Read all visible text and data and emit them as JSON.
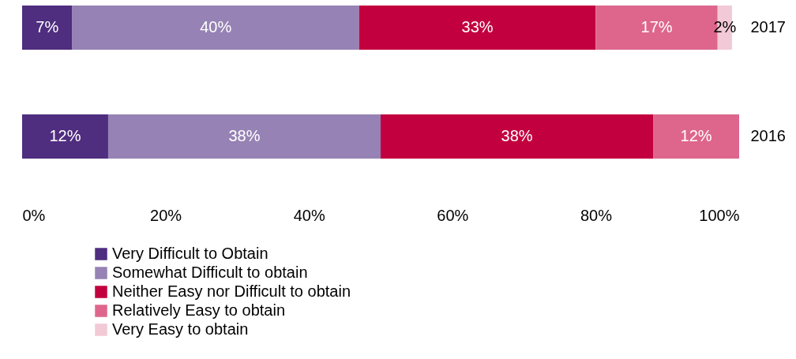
{
  "chart_data": {
    "type": "bar",
    "orientation": "horizontal",
    "stacked": true,
    "categories": [
      "2017",
      "2016"
    ],
    "series": [
      {
        "name": "Very Difficult to Obtain",
        "color": "#4f2d7f",
        "values": [
          7,
          12
        ],
        "value_labels": [
          "7%",
          "12%"
        ]
      },
      {
        "name": "Somewhat Difficult to obtain",
        "color": "#9682b4",
        "values": [
          40,
          38
        ],
        "value_labels": [
          "40%",
          "38%"
        ]
      },
      {
        "name": "Neither Easy nor Difficult to obtain",
        "color": "#c3003f",
        "values": [
          33,
          38
        ],
        "value_labels": [
          "33%",
          "38%"
        ]
      },
      {
        "name": "Relatively Easy to obtain",
        "color": "#de668d",
        "values": [
          17,
          12
        ],
        "value_labels": [
          "17%",
          "12%"
        ]
      },
      {
        "name": "Very Easy to obtain",
        "color": "#f2c9d6",
        "values": [
          2,
          null
        ],
        "value_labels": [
          "2%",
          null
        ]
      }
    ],
    "xlim": [
      0,
      100
    ],
    "xticks": [
      {
        "value": 0,
        "label": "0%"
      },
      {
        "value": 20,
        "label": "20%"
      },
      {
        "value": 40,
        "label": "40%"
      },
      {
        "value": 60,
        "label": "60%"
      },
      {
        "value": 80,
        "label": "80%"
      },
      {
        "value": 100,
        "label": "100%"
      }
    ],
    "grid": false,
    "legend": "bottom left"
  }
}
